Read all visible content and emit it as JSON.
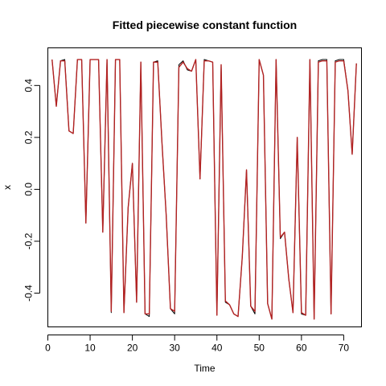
{
  "chart_data": {
    "type": "line",
    "title": "Fitted piecewise constant function",
    "xlabel": "Time",
    "ylabel": "x",
    "xlim": [
      -0.0,
      74.2
    ],
    "ylim": [
      -0.53,
      0.545
    ],
    "x_ticks": [
      0,
      10,
      20,
      30,
      40,
      50,
      60,
      70
    ],
    "x_tick_labels": [
      "0",
      "10",
      "20",
      "30",
      "40",
      "50",
      "60",
      "70"
    ],
    "y_ticks": [
      -0.4,
      -0.2,
      0.0,
      0.2,
      0.4
    ],
    "y_tick_labels": [
      "-0.4",
      "-0.2",
      "0.0",
      "0.2",
      "0.4"
    ],
    "grid": false,
    "series": [
      {
        "color": "#000000",
        "x": [
          1,
          2,
          3,
          4,
          5,
          6,
          7,
          8,
          9,
          10,
          11,
          12,
          13,
          14,
          15,
          16,
          17,
          18,
          19,
          20,
          21,
          22,
          23,
          24,
          25,
          26,
          27,
          28,
          29,
          30,
          31,
          32,
          33,
          34,
          35,
          36,
          37,
          38,
          39,
          40,
          41,
          42,
          43,
          44,
          45,
          46,
          47,
          48,
          49,
          50,
          51,
          52,
          53,
          54,
          55,
          56,
          57,
          58,
          59,
          60,
          61,
          62,
          63,
          64,
          65,
          66,
          67,
          68,
          69,
          70,
          71,
          72,
          73
        ],
        "values": [
          0.5,
          0.32,
          0.495,
          0.5,
          0.225,
          0.215,
          0.5,
          0.5,
          -0.13,
          0.5,
          0.5,
          0.5,
          -0.165,
          0.5,
          -0.475,
          0.5,
          0.5,
          -0.475,
          -0.07,
          0.1,
          -0.435,
          0.49,
          -0.48,
          -0.49,
          0.49,
          0.495,
          0.18,
          -0.1,
          -0.46,
          -0.48,
          0.48,
          0.495,
          0.46,
          0.455,
          0.5,
          0.04,
          0.5,
          0.495,
          0.49,
          -0.485,
          0.48,
          -0.435,
          -0.445,
          -0.48,
          -0.49,
          -0.26,
          0.075,
          -0.45,
          -0.48,
          0.5,
          0.44,
          -0.44,
          -0.5,
          0.5,
          -0.19,
          -0.165,
          -0.345,
          -0.475,
          0.2,
          -0.48,
          -0.485,
          0.5,
          -0.5,
          0.495,
          0.5,
          0.5,
          -0.48,
          0.495,
          0.5,
          0.5,
          0.38,
          0.135,
          0.485
        ]
      },
      {
        "color": "#b22222",
        "x": [
          1,
          2,
          3,
          4,
          5,
          6,
          7,
          8,
          9,
          10,
          11,
          12,
          13,
          14,
          15,
          16,
          17,
          18,
          19,
          20,
          21,
          22,
          23,
          24,
          25,
          26,
          27,
          28,
          29,
          30,
          31,
          32,
          33,
          34,
          35,
          36,
          37,
          38,
          39,
          40,
          41,
          42,
          43,
          44,
          45,
          46,
          47,
          48,
          49,
          50,
          51,
          52,
          53,
          54,
          55,
          56,
          57,
          58,
          59,
          60,
          61,
          62,
          63,
          64,
          65,
          66,
          67,
          68,
          69,
          70,
          71,
          72,
          73
        ],
        "values": [
          0.5,
          0.32,
          0.495,
          0.495,
          0.225,
          0.215,
          0.5,
          0.5,
          -0.13,
          0.5,
          0.5,
          0.5,
          -0.165,
          0.5,
          -0.47,
          0.5,
          0.5,
          -0.475,
          -0.07,
          0.1,
          -0.435,
          0.49,
          -0.48,
          -0.48,
          0.49,
          0.49,
          0.18,
          -0.1,
          -0.46,
          -0.47,
          0.47,
          0.49,
          0.465,
          0.455,
          0.5,
          0.04,
          0.495,
          0.495,
          0.49,
          -0.485,
          0.48,
          -0.43,
          -0.445,
          -0.48,
          -0.49,
          -0.26,
          0.075,
          -0.45,
          -0.47,
          0.5,
          0.44,
          -0.44,
          -0.5,
          0.5,
          -0.185,
          -0.165,
          -0.345,
          -0.475,
          0.2,
          -0.475,
          -0.485,
          0.5,
          -0.5,
          0.49,
          0.495,
          0.495,
          -0.48,
          0.49,
          0.495,
          0.495,
          0.38,
          0.135,
          0.485
        ]
      }
    ]
  }
}
